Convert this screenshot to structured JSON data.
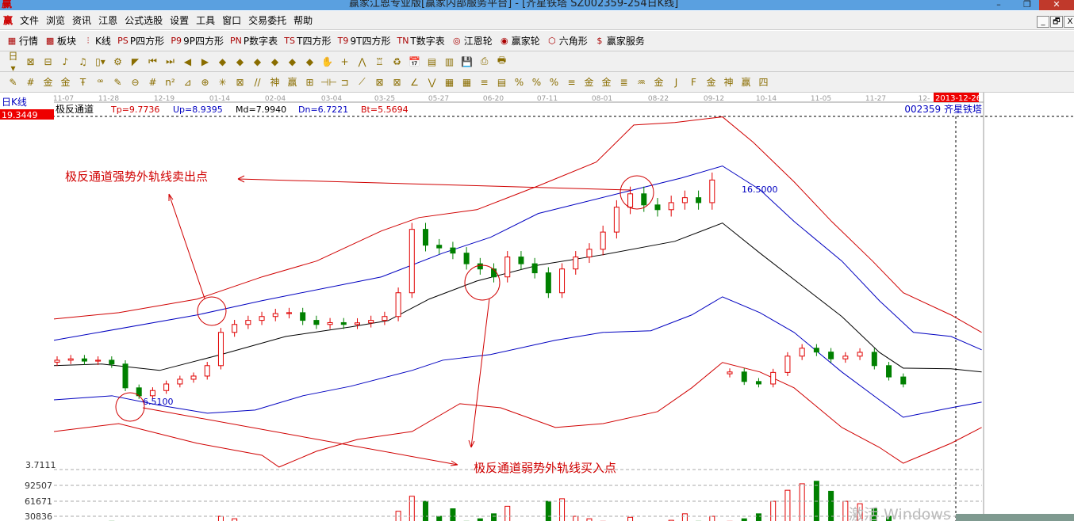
{
  "window": {
    "title": "赢家江恩专业版[赢家内部服务平台] - [齐星铁塔  SZ002359-254日K线]",
    "logo": "赢",
    "minimize": "–",
    "restore": "❐",
    "close": "✕"
  },
  "menu": [
    "文件",
    "浏览",
    "资讯",
    "江恩",
    "公式选股",
    "设置",
    "工具",
    "窗口",
    "交易委托",
    "帮助"
  ],
  "mdi_buttons": [
    "_",
    "🗗",
    "X"
  ],
  "toolbar1": [
    {
      "icon": "table-icon",
      "glyph": "▦",
      "label": "行情"
    },
    {
      "icon": "blocks-icon",
      "glyph": "▩",
      "label": "板块"
    },
    {
      "icon": "candles-icon",
      "glyph": "⫶",
      "label": "K线"
    },
    {
      "icon": "ps-icon",
      "glyph": "PS",
      "label": "P四方形"
    },
    {
      "icon": "p9-icon",
      "glyph": "P9",
      "label": "9P四方形"
    },
    {
      "icon": "pn-icon",
      "glyph": "PN",
      "label": "P数字表"
    },
    {
      "icon": "ts-icon",
      "glyph": "TS",
      "label": "T四方形"
    },
    {
      "icon": "t9-icon",
      "glyph": "T9",
      "label": "9T四方形"
    },
    {
      "icon": "tn-icon",
      "glyph": "TN",
      "label": "T数字表"
    },
    {
      "icon": "gann-wheel-icon",
      "glyph": "◎",
      "label": "江恩轮"
    },
    {
      "icon": "winner-wheel-icon",
      "glyph": "◉",
      "label": "赢家轮"
    },
    {
      "icon": "hexagon-icon",
      "glyph": "⬡",
      "label": "六角形"
    },
    {
      "icon": "dollar-icon",
      "glyph": "$",
      "label": "赢家服务"
    }
  ],
  "toolbar2": [
    "日▾",
    "⊠",
    "⊟",
    "♪",
    "♫",
    "▯▾",
    "⚙",
    "◤",
    "⏮",
    "⏭",
    "◀",
    "▶",
    "◆",
    "◆",
    "◆",
    "◆",
    "◆",
    "◆",
    "✋",
    "+",
    "⋀",
    "♖",
    "♻",
    "📅",
    "▤",
    "▥",
    "💾",
    "⎙",
    "🖶"
  ],
  "toolbar3": [
    "✎",
    "#",
    "金",
    "金",
    "Ŧ",
    "ꟹ",
    "✎",
    "⊖",
    "#",
    "n²",
    "⊿",
    "⊕",
    "✳",
    "⊠",
    "//",
    "神",
    "赢",
    "⊞",
    "⊣⊢",
    "⊐",
    "⟋",
    "⊠",
    "⊠",
    "∠",
    "⋁",
    "▦",
    "▦",
    "≡",
    "▤",
    "%",
    "%",
    "%",
    "≡",
    "金",
    "金",
    "≣",
    "♒",
    "金",
    "J",
    "F",
    "金",
    "神",
    "赢",
    "四"
  ],
  "chart": {
    "period_label": "日K线",
    "top_price": "19.3449",
    "indicator_name": "极反通道",
    "tp": "Tp=9.7736",
    "up": "Up=8.9395",
    "md": "Md=7.9940",
    "dn": "Dn=6.7221",
    "bt": "Bt=5.5694",
    "stock": "002359  齐星铁塔",
    "date_ticks": [
      "11-07",
      "11-28",
      "12-19",
      "01-14",
      "02-04",
      "03-04",
      "03-25",
      "05-27",
      "06-20",
      "07-11",
      "08-01",
      "08-22",
      "09-12",
      "10-14",
      "11-05",
      "11-27",
      "12-"
    ],
    "current_date": "2013-12-26",
    "bottom_price": "3.7111",
    "high_label": "16.5000",
    "low_label": "6.5100",
    "sell_annotation": "极反通道强势外轨线卖出点",
    "buy_annotation": "极反通道弱势外轨线买入点",
    "volume_ticks": [
      "92507",
      "61671",
      "30836"
    ],
    "watermark": "激活 Windows",
    "colors": {
      "up": "#e00000",
      "down": "#008000",
      "tp": "#d00000",
      "band": "#0000c0",
      "md": "#000000"
    }
  },
  "chart_data": {
    "type": "candlestick",
    "ylim": [
      3.7111,
      19.3449
    ],
    "bars": 254,
    "channel": {
      "Tp": [
        [
          0,
          10.36
        ],
        [
          19,
          10.64
        ],
        [
          42,
          11.24
        ],
        [
          61,
          12.22
        ],
        [
          77,
          12.92
        ],
        [
          96,
          14.25
        ],
        [
          107,
          14.84
        ],
        [
          124,
          15.19
        ],
        [
          142,
          16.24
        ],
        [
          159,
          17.29
        ],
        [
          170,
          18.93
        ],
        [
          182,
          19.04
        ],
        [
          196,
          19.29
        ],
        [
          205,
          18.17
        ],
        [
          217,
          16.42
        ],
        [
          228,
          14.67
        ],
        [
          240,
          12.92
        ],
        [
          249,
          11.52
        ],
        [
          263,
          10.54
        ],
        [
          272,
          9.77
        ]
      ],
      "Up": [
        [
          0,
          9.42
        ],
        [
          42,
          10.54
        ],
        [
          61,
          11.17
        ],
        [
          96,
          12.22
        ],
        [
          114,
          13.27
        ],
        [
          128,
          13.97
        ],
        [
          142,
          15.02
        ],
        [
          170,
          16.07
        ],
        [
          184,
          16.59
        ],
        [
          196,
          17.12
        ],
        [
          207,
          16.07
        ],
        [
          217,
          14.67
        ],
        [
          231,
          12.92
        ],
        [
          242,
          11.17
        ],
        [
          252,
          9.77
        ],
        [
          263,
          9.59
        ],
        [
          272,
          9.0
        ]
      ],
      "Md": [
        [
          0,
          8.3
        ],
        [
          14,
          8.37
        ],
        [
          31,
          8.09
        ],
        [
          49,
          8.79
        ],
        [
          68,
          9.59
        ],
        [
          87,
          10.01
        ],
        [
          98,
          10.29
        ],
        [
          110,
          11.24
        ],
        [
          124,
          12.04
        ],
        [
          142,
          12.74
        ],
        [
          161,
          13.2
        ],
        [
          182,
          13.79
        ],
        [
          196,
          14.6
        ],
        [
          207,
          13.27
        ],
        [
          219,
          11.87
        ],
        [
          231,
          10.47
        ],
        [
          242,
          8.89
        ],
        [
          249,
          8.19
        ],
        [
          263,
          8.16
        ],
        [
          272,
          8.02
        ]
      ],
      "Dn": [
        [
          0,
          6.79
        ],
        [
          17,
          6.97
        ],
        [
          31,
          6.55
        ],
        [
          45,
          6.2
        ],
        [
          59,
          6.34
        ],
        [
          73,
          6.97
        ],
        [
          87,
          7.39
        ],
        [
          105,
          8.09
        ],
        [
          114,
          8.54
        ],
        [
          128,
          8.79
        ],
        [
          147,
          9.42
        ],
        [
          161,
          9.77
        ],
        [
          175,
          9.84
        ],
        [
          187,
          10.54
        ],
        [
          196,
          11.34
        ],
        [
          207,
          10.64
        ],
        [
          217,
          9.77
        ],
        [
          231,
          8.02
        ],
        [
          242,
          6.79
        ],
        [
          249,
          6.02
        ],
        [
          263,
          6.44
        ],
        [
          272,
          6.69
        ]
      ],
      "Bt": [
        [
          0,
          5.39
        ],
        [
          19,
          5.74
        ],
        [
          42,
          4.87
        ],
        [
          61,
          4.34
        ],
        [
          66,
          3.82
        ],
        [
          77,
          4.52
        ],
        [
          89,
          5.04
        ],
        [
          105,
          5.39
        ],
        [
          119,
          6.62
        ],
        [
          131,
          6.44
        ],
        [
          147,
          5.57
        ],
        [
          161,
          5.74
        ],
        [
          177,
          6.27
        ],
        [
          187,
          7.32
        ],
        [
          196,
          8.44
        ],
        [
          207,
          8.02
        ],
        [
          217,
          7.32
        ],
        [
          231,
          5.57
        ],
        [
          242,
          4.69
        ],
        [
          249,
          3.99
        ],
        [
          263,
          4.87
        ],
        [
          272,
          5.57
        ]
      ]
    },
    "closes": [
      8.54,
      8.6,
      8.5,
      8.54,
      8.37,
      7.32,
      6.97,
      7.2,
      7.49,
      7.7,
      7.84,
      8.3,
      9.77,
      10.12,
      10.3,
      10.47,
      10.6,
      10.64,
      10.3,
      10.12,
      10.2,
      10.12,
      10.19,
      10.3,
      10.47,
      11.52,
      14.32,
      13.62,
      13.5,
      13.27,
      12.8,
      12.57,
      12.22,
      13.1,
      12.8,
      12.4,
      11.52,
      12.57,
      13.1,
      13.44,
      14.2,
      15.3,
      15.89,
      15.4,
      15.19,
      15.5,
      15.72,
      15.5,
      16.5,
      8.02,
      7.6,
      7.49,
      8.0,
      8.72,
      9.07,
      8.9,
      8.6,
      8.72,
      8.89,
      8.3,
      7.8,
      7.49
    ],
    "volumes": [
      5000,
      8000,
      12000,
      6000,
      20000,
      15000,
      9000,
      10000,
      7000,
      8000,
      11000,
      14000,
      30000,
      25000,
      12000,
      9000,
      8000,
      7000,
      10000,
      9000,
      8000,
      7000,
      6000,
      9000,
      12000,
      40000,
      70000,
      60000,
      30000,
      45000,
      20000,
      25000,
      35000,
      50000,
      18000,
      12000,
      60000,
      65000,
      30000,
      25000,
      20000,
      15000,
      28000,
      12000,
      14000,
      22000,
      35000,
      20000,
      30000,
      20000,
      25000,
      35000,
      60000,
      82000,
      95000,
      100000,
      80000,
      60000,
      55000,
      45000,
      30000,
      8000
    ]
  }
}
